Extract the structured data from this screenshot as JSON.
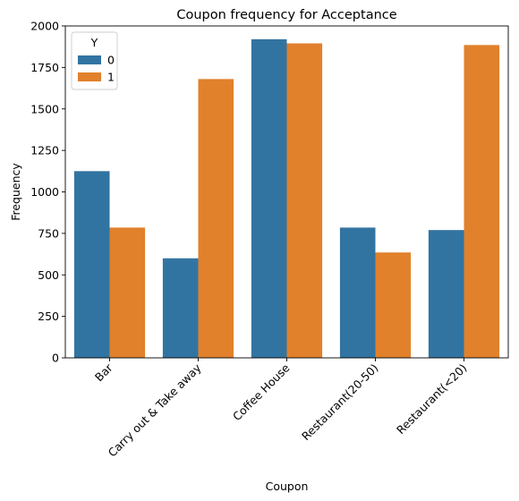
{
  "chart_data": {
    "type": "bar",
    "title": "Coupon frequency for Acceptance",
    "xlabel": "Coupon",
    "ylabel": "Frequency",
    "categories": [
      "Bar",
      "Carry out & Take away",
      "Coffee House",
      "Restaurant(20-50)",
      "Restaurant(<20)"
    ],
    "series": [
      {
        "name": "0",
        "color": "#3274a1",
        "values": [
          1125,
          600,
          1920,
          785,
          770
        ]
      },
      {
        "name": "1",
        "color": "#e1812c",
        "values": [
          785,
          1680,
          1895,
          635,
          1885
        ]
      }
    ],
    "legend_title": "Y",
    "legend_position": "top-left",
    "ylim": [
      0,
      2000
    ],
    "yticks": [
      0,
      250,
      500,
      750,
      1000,
      1250,
      1500,
      1750,
      2000
    ],
    "xtick_rotation": 45,
    "grid": false
  }
}
